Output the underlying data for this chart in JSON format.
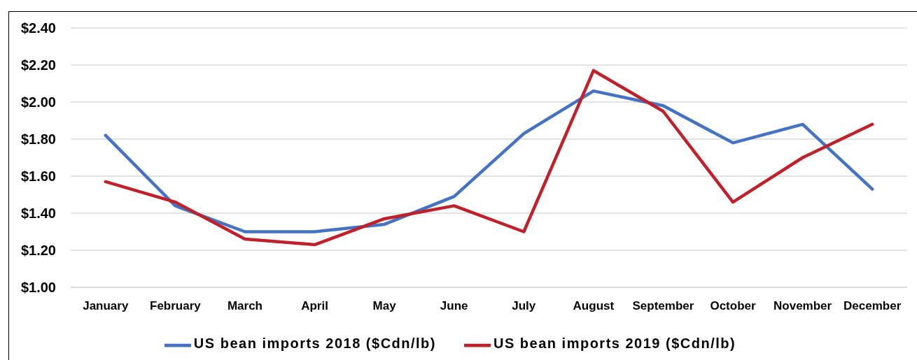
{
  "chart_data": {
    "type": "line",
    "categories": [
      "January",
      "February",
      "March",
      "April",
      "May",
      "June",
      "July",
      "August",
      "September",
      "October",
      "November",
      "December"
    ],
    "series": [
      {
        "name": "US bean imports 2018 ($Cdn/lb)",
        "color": "#4472c4",
        "values": [
          1.82,
          1.44,
          1.3,
          1.3,
          1.34,
          1.49,
          1.83,
          2.06,
          1.98,
          1.78,
          1.88,
          1.53
        ]
      },
      {
        "name": "US bean imports 2019 ($Cdn/lb)",
        "color": "#c0202a",
        "values": [
          1.57,
          1.46,
          1.26,
          1.23,
          1.37,
          1.44,
          1.3,
          2.17,
          1.95,
          1.46,
          1.7,
          1.88
        ]
      }
    ],
    "ylim": [
      1.0,
      2.4
    ],
    "yticks": [
      {
        "value": 1.0,
        "label": "$1.00"
      },
      {
        "value": 1.2,
        "label": "$1.20"
      },
      {
        "value": 1.4,
        "label": "$1.40"
      },
      {
        "value": 1.6,
        "label": "$1.60"
      },
      {
        "value": 1.8,
        "label": "$1.80"
      },
      {
        "value": 2.0,
        "label": "$2.00"
      },
      {
        "value": 2.2,
        "label": "$2.20"
      },
      {
        "value": 2.4,
        "label": "$2.40"
      }
    ],
    "grid": "y",
    "legend": "bottom",
    "marker": "none",
    "line_style": "solid"
  }
}
